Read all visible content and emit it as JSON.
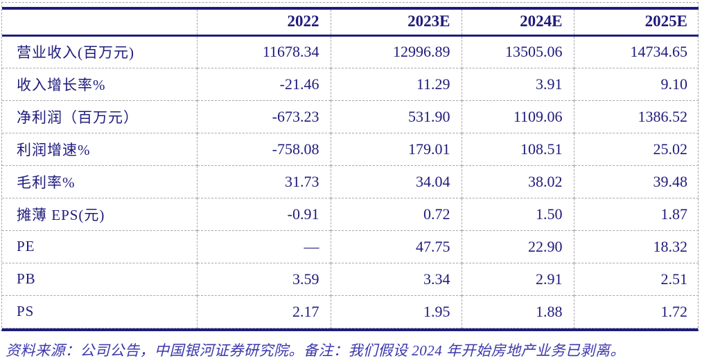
{
  "colors": {
    "accent_navy": "#1E1B7C",
    "note_blue": "#3A36AC",
    "grid_gray": "#A6A6A6"
  },
  "table": {
    "columns": [
      "",
      "2022",
      "2023E",
      "2024E",
      "2025E"
    ],
    "rows": [
      {
        "label": "营业收入(百万元)",
        "values": [
          "11678.34",
          "12996.89",
          "13505.06",
          "14734.65"
        ]
      },
      {
        "label": "收入增长率%",
        "values": [
          "-21.46",
          "11.29",
          "3.91",
          "9.10"
        ]
      },
      {
        "label": "净利润（百万元）",
        "values": [
          "-673.23",
          "531.90",
          "1109.06",
          "1386.52"
        ]
      },
      {
        "label": "利润增速%",
        "values": [
          "-758.08",
          "179.01",
          "108.51",
          "25.02"
        ]
      },
      {
        "label": "毛利率%",
        "values": [
          "31.73",
          "34.04",
          "38.02",
          "39.48"
        ]
      },
      {
        "label": "摊薄 EPS(元)",
        "values": [
          "-0.91",
          "0.72",
          "1.50",
          "1.87"
        ]
      },
      {
        "label": "PE",
        "values": [
          "—",
          "47.75",
          "22.90",
          "18.32"
        ]
      },
      {
        "label": "PB",
        "values": [
          "3.59",
          "3.34",
          "2.91",
          "2.51"
        ]
      },
      {
        "label": "PS",
        "values": [
          "2.17",
          "1.95",
          "1.88",
          "1.72"
        ]
      }
    ]
  },
  "footnote": {
    "text": "资料来源：公司公告，中国银河证券研究院。备注：我们假设 2024 年开始房地产业务已剥离。"
  }
}
